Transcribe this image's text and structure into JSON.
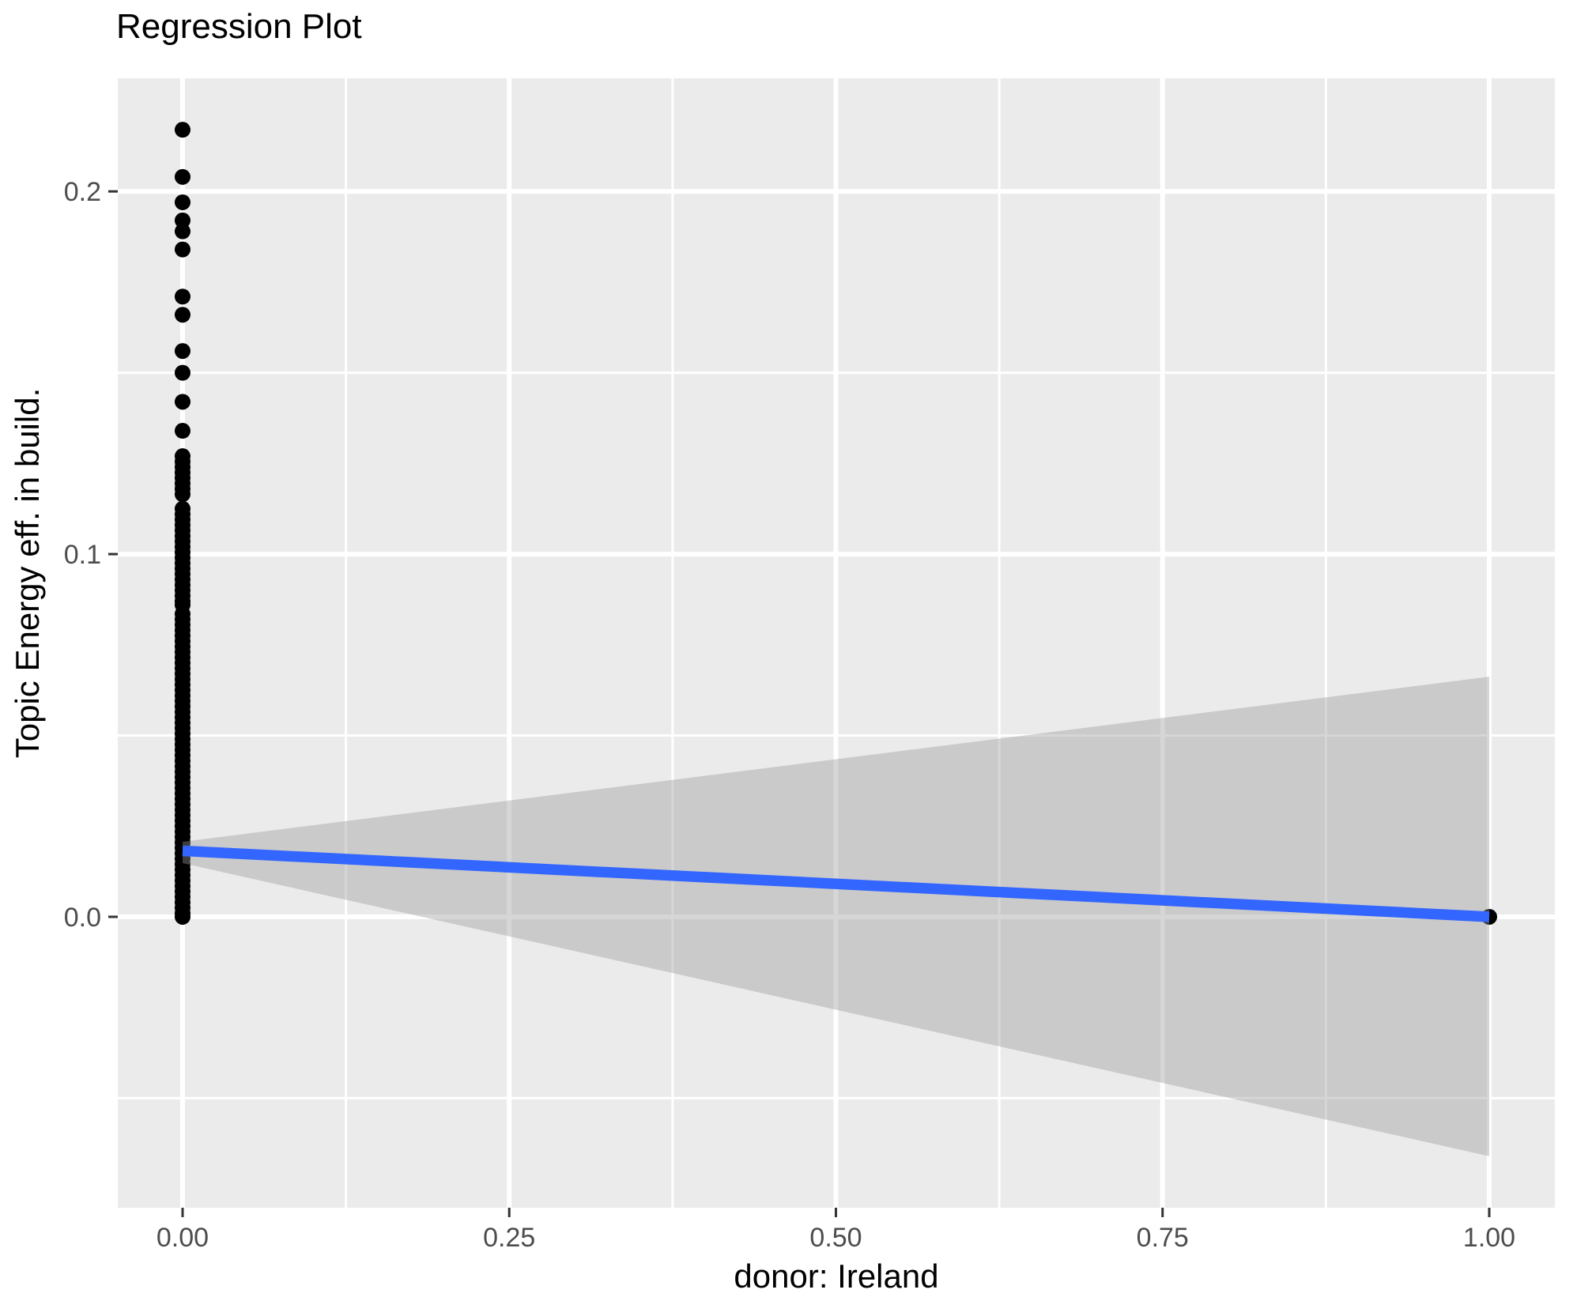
{
  "chart_data": {
    "type": "scatter",
    "title": "Regression Plot",
    "xlabel": "donor: Ireland",
    "ylabel": "Topic Energy eff. in build.",
    "grid": "on",
    "legend": "none",
    "xlim": [
      -0.0496,
      1.0502
    ],
    "ylim": [
      -0.0802,
      0.2312
    ],
    "x_tick_values": [
      0,
      0.25,
      0.5,
      0.75,
      1
    ],
    "x_tick_labels": [
      "0.00",
      "0.25",
      "0.50",
      "0.75",
      "1.00"
    ],
    "y_tick_values": [
      0,
      0.1,
      0.2
    ],
    "y_tick_labels": [
      "0.0",
      "0.1",
      "0.2"
    ],
    "x_minor_tick_values": [
      0.125,
      0.375,
      0.625,
      0.875
    ],
    "y_minor_tick_values": [
      -0.05,
      0.05,
      0.15
    ],
    "series": [
      {
        "name": "observations at donor = 0",
        "x": 0,
        "y_values": [
          0.217,
          0.204,
          0.197,
          0.192,
          0.189,
          0.184,
          0.171,
          0.166,
          0.156,
          0.15,
          0.142,
          0.134,
          0.127,
          0.1255,
          0.124,
          0.1225,
          0.121,
          0.1195,
          0.118,
          0.1165,
          0.1125,
          0.111,
          0.1095,
          0.108,
          0.1065,
          0.105,
          0.1035,
          0.102,
          0.1005,
          0.099,
          0.0975,
          0.096,
          0.0945,
          0.093,
          0.0915,
          0.09,
          0.0885,
          0.087,
          0.086,
          0.0835,
          0.082,
          0.0805,
          0.079,
          0.0775,
          0.076,
          0.0745,
          0.073,
          0.0715,
          0.07,
          0.0685,
          0.067,
          0.0655,
          0.064,
          0.0625,
          0.061,
          0.0595,
          0.058,
          0.0565,
          0.055,
          0.0535,
          0.052,
          0.0505,
          0.049,
          0.0475,
          0.046,
          0.0445,
          0.043,
          0.0415,
          0.04,
          0.0385,
          0.037,
          0.0355,
          0.034,
          0.0325,
          0.031,
          0.0295,
          0.028,
          0.0265,
          0.025,
          0.0235,
          0.022,
          0.0205,
          0.019,
          0.0175,
          0.016,
          0.0145,
          0.013,
          0.0115,
          0.01,
          0.0085,
          0.007,
          0.0055,
          0.004,
          0.0025,
          0.001,
          0.0
        ]
      },
      {
        "name": "observation at donor = 1",
        "x": 1,
        "y_values": [
          0.0
        ]
      }
    ],
    "regression_line": {
      "x": [
        0,
        1
      ],
      "y": [
        0.0182,
        0.0
      ]
    },
    "confidence_band": {
      "x": [
        0,
        1
      ],
      "upper": [
        0.0207,
        0.0662
      ],
      "lower": [
        0.0148,
        -0.066
      ]
    },
    "colors": {
      "point": "#000000",
      "line": "#3366FF",
      "band_fill": "rgba(153,153,153,0.4)",
      "panel_background": "#EBEBEB",
      "grid": "#FFFFFF",
      "tick_mark": "#333333",
      "tick_label": "#4D4D4D",
      "title_text": "#000000"
    }
  }
}
